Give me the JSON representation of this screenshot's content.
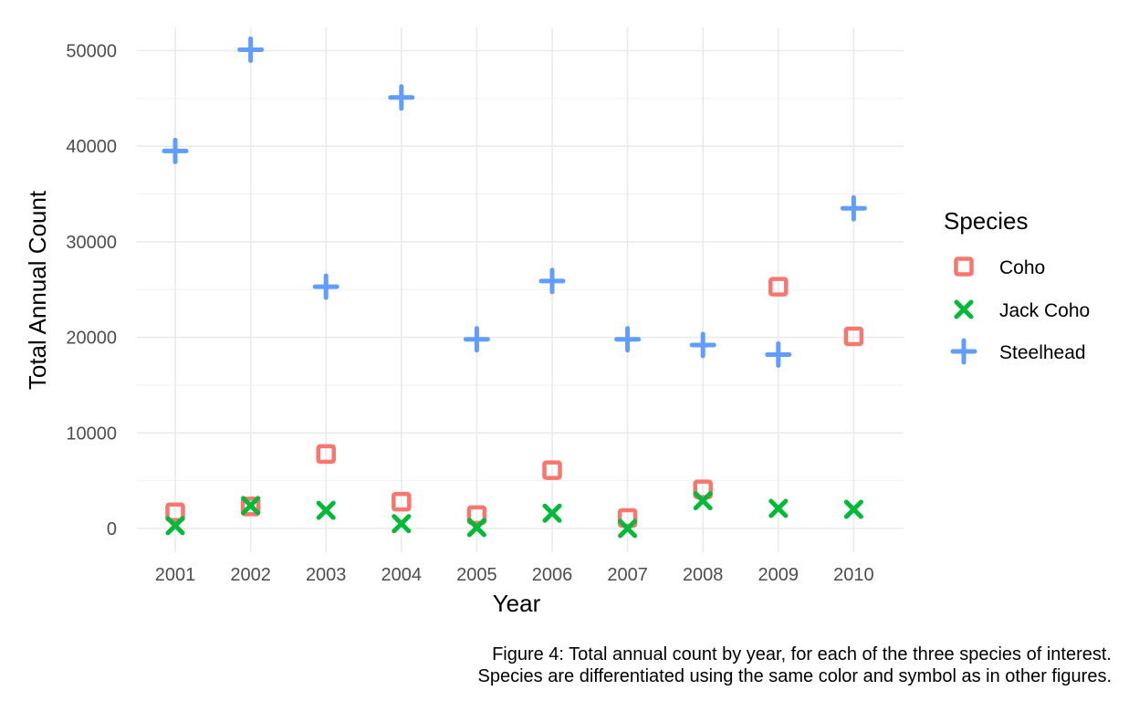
{
  "chart_data": {
    "type": "scatter",
    "title": "",
    "xlabel": "Year",
    "ylabel": "Total Annual Count",
    "x": [
      2001,
      2002,
      2003,
      2004,
      2005,
      2006,
      2007,
      2008,
      2009,
      2010
    ],
    "x_ticks": [
      "2001",
      "2002",
      "2003",
      "2004",
      "2005",
      "2006",
      "2007",
      "2008",
      "2009",
      "2010"
    ],
    "ylim": [
      0,
      52000
    ],
    "y_ticks": [
      0,
      10000,
      20000,
      30000,
      40000,
      50000
    ],
    "grid": true,
    "legend": {
      "title": "Species",
      "placement": "right"
    },
    "series": [
      {
        "name": "Coho",
        "marker": "square-open",
        "color": "#F8766D",
        "values": [
          1700,
          2300,
          7800,
          2800,
          1400,
          6100,
          1100,
          4100,
          25300,
          20100
        ]
      },
      {
        "name": "Jack Coho",
        "marker": "x",
        "color": "#00BA38",
        "values": [
          300,
          2400,
          1900,
          500,
          100,
          1600,
          0,
          2900,
          2100,
          2000
        ]
      },
      {
        "name": "Steelhead",
        "marker": "plus",
        "color": "#619CFF",
        "values": [
          39500,
          50100,
          25300,
          45100,
          19800,
          25900,
          19800,
          19200,
          18200,
          33500
        ]
      }
    ]
  },
  "caption": {
    "line1": "Figure 4: Total annual count by year, for each of the three species of interest.",
    "line2": "Species are differentiated using the same color and symbol as in other figures."
  }
}
